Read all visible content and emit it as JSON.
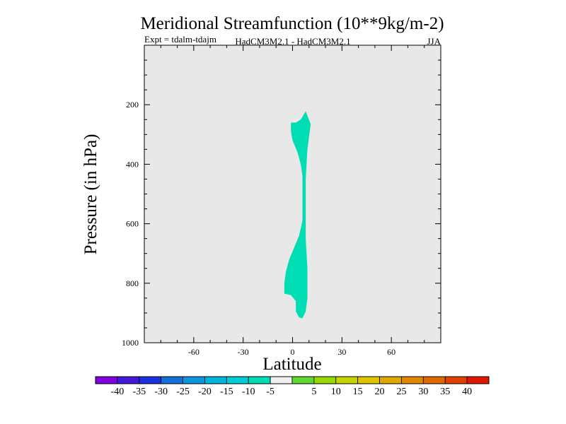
{
  "chart_data": {
    "type": "contour",
    "title": "Meridional Streamfunction (10**9kg/m-2)",
    "subtitle_left": "Expt = tdalm-tdajm",
    "subtitle_center": "HadCM3M2.1 - HadCM3M2.1",
    "subtitle_right": "JJA",
    "xlabel": "Latitude",
    "ylabel": "Pressure (in hPa)",
    "xlim": [
      -90,
      90
    ],
    "ylim": [
      1000,
      0
    ],
    "xticks": [
      -60,
      -30,
      0,
      30,
      60
    ],
    "xtick_labels": [
      "-60",
      "-30",
      "0",
      "30",
      "60"
    ],
    "yticks": [
      200,
      400,
      600,
      800,
      1000
    ],
    "ytick_labels": [
      "200",
      "400",
      "600",
      "800",
      "1000"
    ],
    "background_color": "#e8e8e8",
    "filled_region": {
      "level": "-10 to -5",
      "color": "#00dcb4",
      "outline": [
        [
          8,
          222
        ],
        [
          11,
          265
        ],
        [
          9,
          350
        ],
        [
          8,
          450
        ],
        [
          8,
          550
        ],
        [
          8,
          650
        ],
        [
          9,
          750
        ],
        [
          9,
          850
        ],
        [
          8,
          895
        ],
        [
          6,
          918
        ],
        [
          4,
          915
        ],
        [
          2,
          895
        ],
        [
          2,
          860
        ],
        [
          -1,
          840
        ],
        [
          -5,
          835
        ],
        [
          -5,
          800
        ],
        [
          -4,
          760
        ],
        [
          -2,
          720
        ],
        [
          1,
          680
        ],
        [
          4,
          640
        ],
        [
          6,
          590
        ],
        [
          6,
          540
        ],
        [
          6,
          490
        ],
        [
          6,
          440
        ],
        [
          5,
          400
        ],
        [
          3,
          360
        ],
        [
          0,
          320
        ],
        [
          -1,
          290
        ],
        [
          -1,
          260
        ],
        [
          2,
          260
        ],
        [
          5,
          250
        ]
      ]
    },
    "colorbar": {
      "colors": [
        "#8000e0",
        "#4418d8",
        "#1c30e0",
        "#1470d8",
        "#0c98e0",
        "#00b4dc",
        "#00ccd8",
        "#00dcb4",
        "#f0f0f0",
        "#60d830",
        "#98d800",
        "#c8d400",
        "#e0c400",
        "#e0a800",
        "#e08800",
        "#e06800",
        "#e04000",
        "#e01800"
      ],
      "labels": [
        "-40",
        "-35",
        "-30",
        "-25",
        "-20",
        "-15",
        "-10",
        "-5",
        "5",
        "10",
        "15",
        "20",
        "25",
        "30",
        "35",
        "40"
      ]
    }
  }
}
